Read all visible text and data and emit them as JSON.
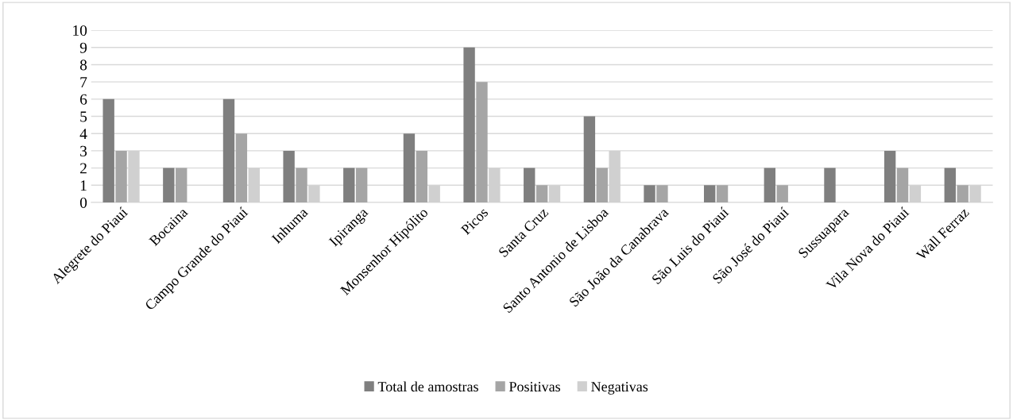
{
  "chart_data": {
    "type": "bar",
    "categories": [
      "Alegrete do Piauí",
      "Bocaina",
      "Campo Grande do Piauí",
      "Inhuma",
      "Ipiranga",
      "Monsenhor Hipólito",
      "Picos",
      "Santa Cruz",
      "Santo Antonio de Lisboa",
      "São João da Canabrava",
      "São Luis do Piauí",
      "São José do Piauí",
      "Sussuapara",
      "Vila Nova do Piauí",
      "Wall Ferraz"
    ],
    "series": [
      {
        "name": "Total de amostras",
        "color": "#7f7f7f",
        "values": [
          6,
          2,
          6,
          3,
          2,
          4,
          9,
          2,
          5,
          1,
          1,
          2,
          2,
          3,
          2
        ]
      },
      {
        "name": "Positivas",
        "color": "#a5a5a5",
        "values": [
          3,
          2,
          4,
          2,
          2,
          3,
          7,
          1,
          2,
          1,
          1,
          1,
          0,
          2,
          1
        ]
      },
      {
        "name": "Negativas",
        "color": "#d0d0d0",
        "values": [
          3,
          0,
          2,
          1,
          0,
          1,
          2,
          1,
          3,
          0,
          0,
          0,
          0,
          1,
          1
        ]
      }
    ],
    "ylim": [
      0,
      10
    ],
    "yticks": [
      0,
      1,
      2,
      3,
      4,
      5,
      6,
      7,
      8,
      9,
      10
    ],
    "grid": "y",
    "legend": "bottom"
  }
}
